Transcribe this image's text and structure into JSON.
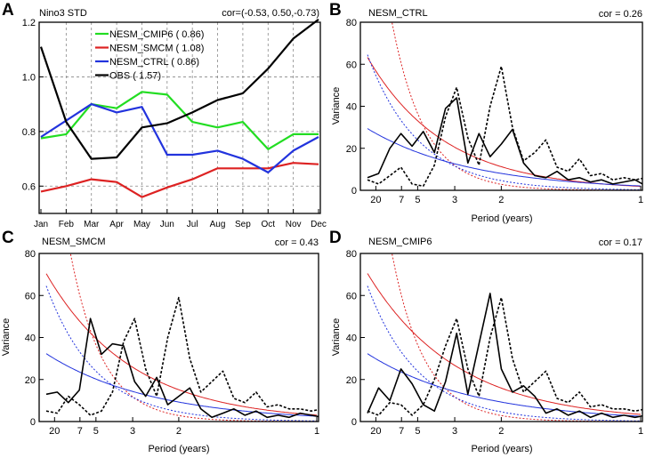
{
  "chart_data": [
    {
      "panel_letter": "A",
      "title": "Nino3 STD",
      "annotation": "cor=(-0.53, 0.50,-0.73)",
      "type": "line",
      "xlabel": "",
      "ylabel": "",
      "ylim": [
        0.5,
        1.2
      ],
      "yticks": [
        0.6,
        0.8,
        1.0,
        1.2
      ],
      "ytick_labels": [
        "0.6",
        "0.8",
        "1.0",
        "1.2"
      ],
      "grid": true,
      "legend_position": "top-center",
      "categories": [
        "Jan",
        "Feb",
        "Mar",
        "Apr",
        "May",
        "Jun",
        "Jul",
        "Aug",
        "Sep",
        "Oct",
        "Nov",
        "Dec"
      ],
      "series": [
        {
          "name": "NESM_CMIP6",
          "legend_value": "( 0.86)",
          "color": "#22dd22",
          "values": [
            0.775,
            0.79,
            0.9,
            0.885,
            0.945,
            0.935,
            0.835,
            0.815,
            0.835,
            0.735,
            0.79,
            0.79
          ]
        },
        {
          "name": "NESM_SMCM",
          "legend_value": "( 1.08)",
          "color": "#dd2222",
          "values": [
            0.58,
            0.6,
            0.625,
            0.615,
            0.56,
            0.595,
            0.625,
            0.665,
            0.665,
            0.665,
            0.685,
            0.68
          ]
        },
        {
          "name": "NESM_CTRL",
          "legend_value": "( 0.86)",
          "color": "#2233dd",
          "values": [
            0.78,
            0.84,
            0.9,
            0.87,
            0.89,
            0.715,
            0.715,
            0.73,
            0.7,
            0.65,
            0.73,
            0.78
          ]
        },
        {
          "name": "OBS",
          "legend_value": "( 1.57)",
          "color": "#000000",
          "values": [
            1.11,
            0.835,
            0.7,
            0.705,
            0.815,
            0.83,
            0.87,
            0.915,
            0.94,
            1.03,
            1.14,
            1.21
          ]
        }
      ]
    },
    {
      "panel_letter": "B",
      "title": "NESM_CTRL",
      "annotation": "cor =  0.26",
      "type": "line",
      "xlabel": "Period (years)",
      "ylabel": "Variance",
      "xlim": [
        0.02,
        1.0
      ],
      "ylim": [
        0,
        80
      ],
      "yticks": [
        0,
        20,
        40,
        60,
        80
      ],
      "ytick_labels": [
        "0",
        "20",
        "40",
        "60",
        "80"
      ],
      "xtick_labels": [
        "20",
        "7",
        "5",
        "3",
        "2",
        "1"
      ],
      "xtick_positions": [
        0.05,
        0.142,
        0.2,
        0.333,
        0.5,
        1.0
      ],
      "spectrum_x_start": 0.02,
      "spectrum_x_step": 0.04,
      "obs_spectrum": [
        5,
        3,
        7,
        11,
        3,
        2,
        12,
        35,
        49,
        25,
        12,
        40,
        59,
        30,
        14,
        18,
        24,
        11,
        9,
        15,
        7,
        8,
        5,
        6,
        5,
        6,
        4,
        5
      ],
      "model_spectrum": [
        6,
        8,
        20,
        27,
        21,
        28,
        18,
        39,
        44,
        13,
        27,
        16,
        22,
        29,
        13,
        7,
        6,
        9,
        5,
        6,
        4,
        5,
        3,
        4,
        5,
        2,
        3,
        2
      ],
      "red_noise": {
        "model_amplitude": 68,
        "model_decay": 3.6,
        "model_color": "#dd2222",
        "obs_amplitude": 200,
        "obs_decay": 8.5,
        "obs_color": "#dd2222",
        "obs_style": "dotted"
      },
      "blue_fit": {
        "model_amplitude": 31,
        "model_decay": 2.7,
        "model_color": "#2233dd",
        "obs_amplitude": 72,
        "obs_decay": 5.5,
        "obs_color": "#2233dd",
        "obs_style": "dotted"
      },
      "obs_style": "dotted"
    },
    {
      "panel_letter": "C",
      "title": "NESM_SMCM",
      "annotation": "cor =  0.43",
      "type": "line",
      "xlabel": "Period (years)",
      "ylabel": "Variance",
      "xlim": [
        0.02,
        1.0
      ],
      "ylim": [
        0,
        80
      ],
      "yticks": [
        0,
        20,
        40,
        60,
        80
      ],
      "ytick_labels": [
        "0",
        "20",
        "40",
        "60",
        "80"
      ],
      "xtick_labels": [
        "20",
        "7",
        "5",
        "3",
        "2",
        "1"
      ],
      "xtick_positions": [
        0.05,
        0.142,
        0.2,
        0.333,
        0.5,
        1.0
      ],
      "spectrum_x_start": 0.02,
      "spectrum_x_step": 0.04,
      "obs_spectrum": [
        5,
        4,
        12,
        8,
        3,
        5,
        14,
        38,
        49,
        25,
        12,
        40,
        59,
        30,
        14,
        19,
        24,
        11,
        9,
        14,
        7,
        8,
        6,
        6,
        5,
        6,
        4,
        5
      ],
      "model_spectrum": [
        13,
        14,
        9,
        15,
        49,
        32,
        37,
        36,
        19,
        12,
        21,
        8,
        12,
        16,
        6,
        2,
        4,
        6,
        3,
        5,
        2,
        3,
        2,
        4,
        3,
        2,
        3,
        1
      ],
      "red_noise": {
        "model_amplitude": 75,
        "model_decay": 3.2,
        "model_color": "#dd2222",
        "obs_amplitude": 200,
        "obs_decay": 8.5,
        "obs_color": "#dd2222",
        "obs_style": "dotted"
      },
      "blue_fit": {
        "model_amplitude": 34,
        "model_decay": 2.6,
        "model_color": "#2233dd",
        "obs_amplitude": 72,
        "obs_decay": 5.5,
        "obs_color": "#2233dd",
        "obs_style": "dotted"
      },
      "obs_style": "dotted"
    },
    {
      "panel_letter": "D",
      "title": "NESM_CMIP6",
      "annotation": "cor =  0.17",
      "type": "line",
      "xlabel": "Period (years)",
      "ylabel": "Variance",
      "xlim": [
        0.02,
        1.0
      ],
      "ylim": [
        0,
        80
      ],
      "yticks": [
        0,
        20,
        40,
        60,
        80
      ],
      "ytick_labels": [
        "0",
        "20",
        "40",
        "60",
        "80"
      ],
      "xtick_labels": [
        "20",
        "7",
        "5",
        "3",
        "2",
        "1"
      ],
      "xtick_positions": [
        0.05,
        0.142,
        0.2,
        0.333,
        0.5,
        1.0
      ],
      "spectrum_x_start": 0.02,
      "spectrum_x_step": 0.04,
      "obs_spectrum": [
        5,
        3,
        9,
        8,
        3,
        8,
        20,
        36,
        49,
        25,
        12,
        40,
        59,
        30,
        14,
        19,
        24,
        11,
        9,
        14,
        7,
        8,
        6,
        6,
        5,
        6,
        4,
        5
      ],
      "model_spectrum": [
        4,
        16,
        10,
        25,
        18,
        8,
        5,
        19,
        42,
        13,
        37,
        61,
        25,
        14,
        17,
        12,
        4,
        6,
        3,
        5,
        2,
        4,
        2,
        3,
        2,
        3,
        2,
        1
      ],
      "red_noise": {
        "model_amplitude": 75,
        "model_decay": 3.1,
        "model_color": "#dd2222",
        "obs_amplitude": 200,
        "obs_decay": 8.5,
        "obs_color": "#dd2222",
        "obs_style": "dotted"
      },
      "blue_fit": {
        "model_amplitude": 34,
        "model_decay": 2.6,
        "model_color": "#2233dd",
        "obs_amplitude": 72,
        "obs_decay": 5.5,
        "obs_color": "#2233dd",
        "obs_style": "dotted"
      },
      "obs_style": "dotted"
    }
  ]
}
